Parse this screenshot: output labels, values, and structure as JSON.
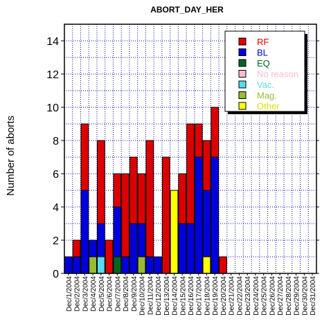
{
  "chart_data": {
    "type": "bar",
    "stacked": true,
    "title": "ABORT_DAY_HER",
    "ylabel": "Number of aborts",
    "xlabel": "",
    "ylim": [
      0,
      15
    ],
    "yticks": [
      0,
      2,
      4,
      6,
      8,
      10,
      12,
      14
    ],
    "grid": true,
    "legend_position": "top-right",
    "categories": [
      "Dec/1/2004",
      "Dec/2/2004",
      "Dec/3/2004",
      "Dec/4/2004",
      "Dec/5/2004",
      "Dec/6/2004",
      "Dec/7/2004",
      "Dec/8/2004",
      "Dec/9/2004",
      "Dec/10/2004",
      "Dec/11/2004",
      "Dec/12/2004",
      "Dec/13/2004",
      "Dec/14/2004",
      "Dec/15/2004",
      "Dec/16/2004",
      "Dec/17/2004",
      "Dec/18/2004",
      "Dec/19/2004",
      "Dec/20/2004",
      "Dec/21/2004",
      "Dec/22/2004",
      "Dec/23/2004",
      "Dec/24/2004",
      "Dec/25/2004",
      "Dec/26/2004",
      "Dec/27/2004",
      "Dec/28/2004",
      "Dec/29/2004",
      "Dec/30/2004",
      "Dec/31/2004"
    ],
    "series": [
      {
        "name": "Other",
        "color": "#ffff00",
        "values": [
          0,
          0,
          0,
          0,
          0,
          0,
          0,
          0,
          0,
          0,
          0,
          0,
          0,
          5,
          0,
          0,
          0,
          1,
          0,
          0,
          0,
          0,
          0,
          0,
          0,
          0,
          0,
          0,
          0,
          0,
          0
        ]
      },
      {
        "name": "Mag.",
        "color": "#99bb33",
        "values": [
          0,
          0,
          0,
          1,
          0,
          0,
          0,
          0,
          0,
          1,
          0,
          0,
          0,
          0,
          0,
          0,
          0,
          0,
          0,
          0,
          0,
          0,
          0,
          0,
          0,
          0,
          0,
          0,
          0,
          0,
          0
        ]
      },
      {
        "name": "Vac.",
        "color": "#55ddee",
        "values": [
          0,
          0,
          0,
          0,
          1,
          0,
          0,
          0,
          0,
          0,
          0,
          0,
          0,
          0,
          0,
          0,
          0,
          0,
          0,
          0,
          0,
          0,
          0,
          0,
          0,
          0,
          0,
          0,
          0,
          0,
          0
        ]
      },
      {
        "name": "No reason",
        "color": "#ffbbcc",
        "values": [
          0,
          0,
          0,
          0,
          0,
          0,
          0,
          0,
          0,
          0,
          0,
          0,
          0,
          0,
          0,
          0,
          0,
          0,
          0,
          0,
          0,
          0,
          0,
          0,
          0,
          0,
          0,
          0,
          0,
          0,
          0
        ]
      },
      {
        "name": "EQ",
        "color": "#006622",
        "values": [
          0,
          0,
          0,
          0,
          0,
          0,
          1,
          0,
          0,
          0,
          0,
          0,
          0,
          0,
          0,
          0,
          0,
          0,
          0,
          0,
          0,
          0,
          0,
          0,
          0,
          0,
          0,
          0,
          0,
          0,
          0
        ]
      },
      {
        "name": "BL",
        "color": "#0000dd",
        "values": [
          1,
          1,
          5,
          1,
          2,
          0,
          3,
          1,
          3,
          2,
          1,
          1,
          0,
          0,
          3,
          3,
          7,
          4,
          7,
          0,
          0,
          0,
          0,
          0,
          0,
          0,
          0,
          0,
          0,
          0,
          0
        ]
      },
      {
        "name": "RF",
        "color": "#dd0000",
        "values": [
          0,
          1,
          4,
          0,
          5,
          2,
          2,
          5,
          4,
          3,
          7,
          0,
          7,
          0,
          3,
          6,
          2,
          3,
          3,
          1,
          0,
          0,
          0,
          0,
          0,
          0,
          0,
          0,
          0,
          0,
          0
        ]
      }
    ],
    "legend": [
      {
        "name": "RF",
        "color": "#dd0000",
        "text_color": "#dd0000"
      },
      {
        "name": "BL",
        "color": "#0000dd",
        "text_color": "#0000dd"
      },
      {
        "name": "EQ",
        "color": "#006622",
        "text_color": "#006622"
      },
      {
        "name": "No reason",
        "color": "#ffbbcc",
        "text_color": "#ffbbcc"
      },
      {
        "name": "Vac.",
        "color": "#55ddee",
        "text_color": "#55ddee"
      },
      {
        "name": "Mag.",
        "color": "#99bb33",
        "text_color": "#99bb33"
      },
      {
        "name": "Other",
        "color": "#ffff00",
        "text_color": "#dddd00"
      }
    ]
  }
}
